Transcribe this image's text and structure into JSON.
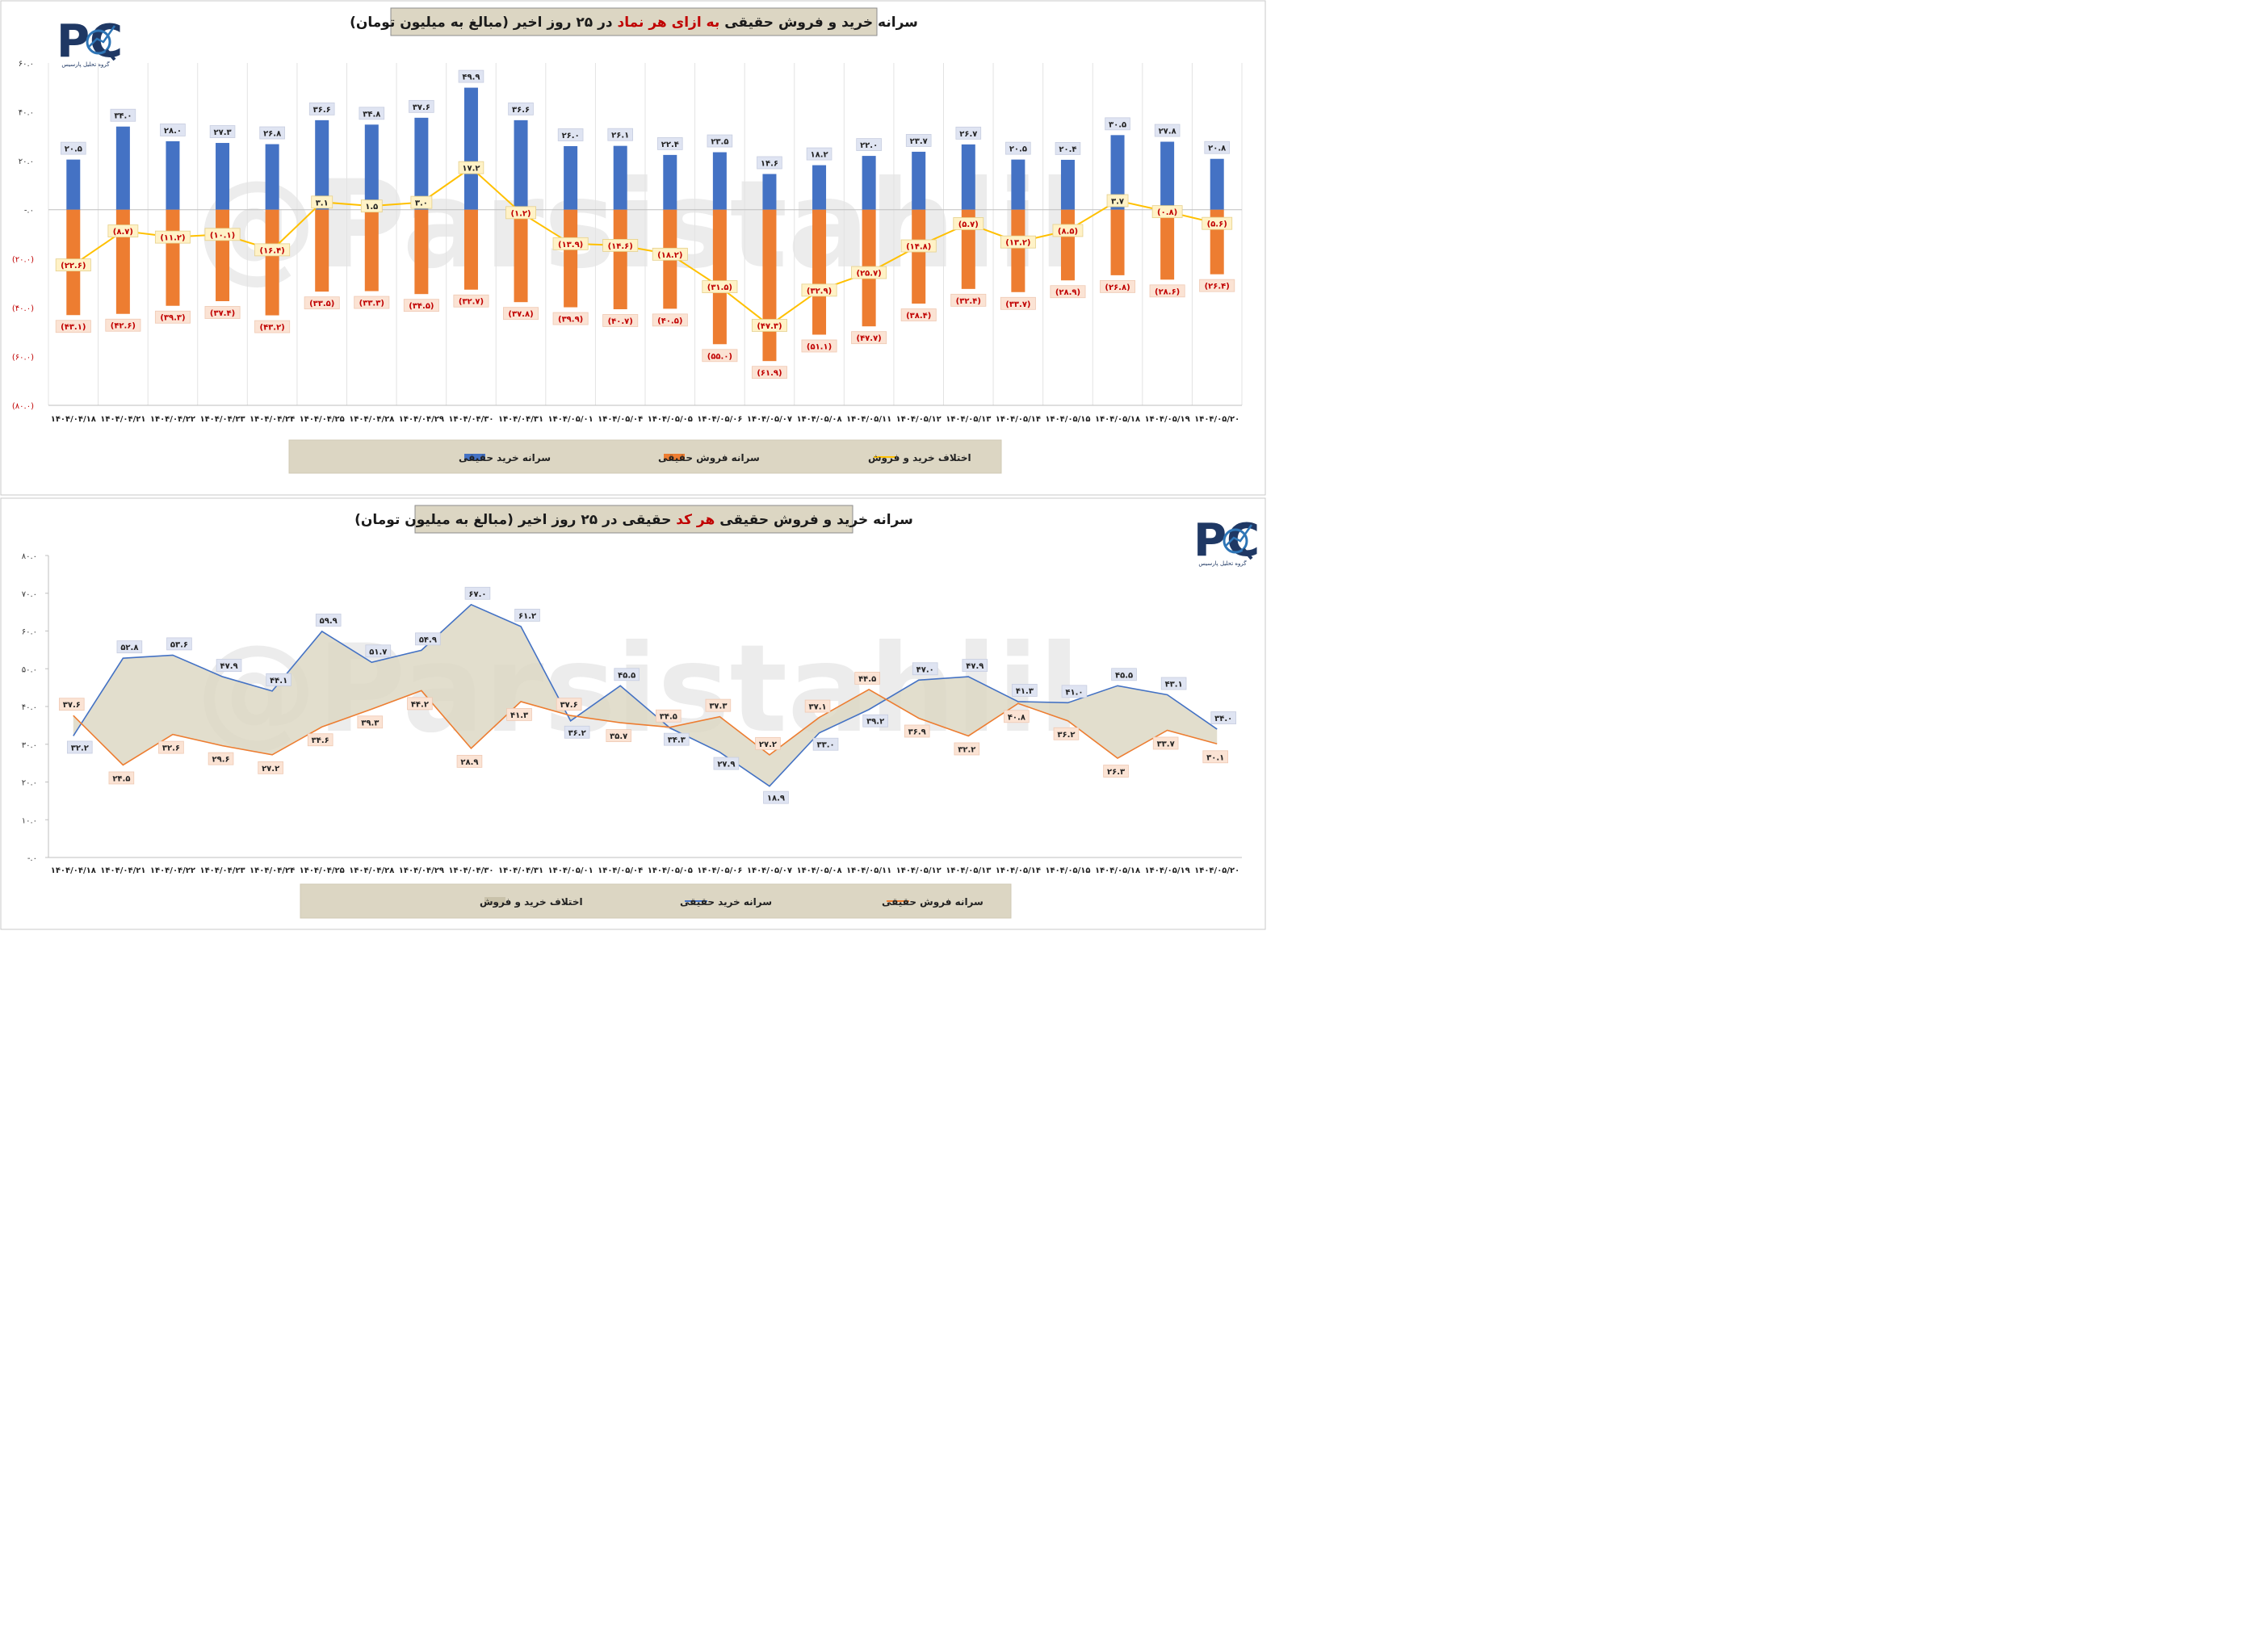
{
  "chart_data": [
    {
      "type": "bar",
      "title": {
        "part1": "سرانه خرید و فروش حقیقی",
        "highlight": "به ازای هر نماد",
        "part2": "در ۲۵ روز اخیر (مبالغ به میلیون تومان)"
      },
      "categories": [
        "۱۴۰۴/۰۴/۱۸",
        "۱۴۰۴/۰۴/۲۱",
        "۱۴۰۴/۰۴/۲۲",
        "۱۴۰۴/۰۴/۲۳",
        "۱۴۰۴/۰۴/۲۴",
        "۱۴۰۴/۰۴/۲۵",
        "۱۴۰۴/۰۴/۲۸",
        "۱۴۰۴/۰۴/۲۹",
        "۱۴۰۴/۰۴/۳۰",
        "۱۴۰۴/۰۴/۳۱",
        "۱۴۰۴/۰۵/۰۱",
        "۱۴۰۴/۰۵/۰۴",
        "۱۴۰۴/۰۵/۰۵",
        "۱۴۰۴/۰۵/۰۶",
        "۱۴۰۴/۰۵/۰۷",
        "۱۴۰۴/۰۵/۰۸",
        "۱۴۰۴/۰۵/۱۱",
        "۱۴۰۴/۰۵/۱۲",
        "۱۴۰۴/۰۵/۱۳",
        "۱۴۰۴/۰۵/۱۴",
        "۱۴۰۴/۰۵/۱۵",
        "۱۴۰۴/۰۵/۱۸",
        "۱۴۰۴/۰۵/۱۹",
        "۱۴۰۴/۰۵/۲۰"
      ],
      "ylim": [
        -80,
        60
      ],
      "yticks": [
        60,
        40,
        20,
        0,
        -20,
        -40,
        -60,
        -80
      ],
      "ytick_labels": [
        "۶۰.۰",
        "۴۰.۰",
        "۲۰.۰",
        "-.۰",
        "(۲۰.۰)",
        "(۴۰.۰)",
        "(۶۰.۰)",
        "(۸۰.۰)"
      ],
      "series": [
        {
          "name": "سرانه خرید حقیقی",
          "color": "#4472c4",
          "kind": "bar",
          "values": [
            20.5,
            34.0,
            28.0,
            27.3,
            26.8,
            36.6,
            34.8,
            37.6,
            49.9,
            36.6,
            26.0,
            26.1,
            22.4,
            23.5,
            14.6,
            18.2,
            22.0,
            23.7,
            26.7,
            20.5,
            20.4,
            30.5,
            27.8,
            20.8
          ],
          "labels": [
            "۲۰.۵",
            "۳۴.۰",
            "۲۸.۰",
            "۲۷.۳",
            "۲۶.۸",
            "۳۶.۶",
            "۳۴.۸",
            "۳۷.۶",
            "۴۹.۹",
            "۳۶.۶",
            "۲۶.۰",
            "۲۶.۱",
            "۲۲.۴",
            "۲۳.۵",
            "۱۴.۶",
            "۱۸.۲",
            "۲۲.۰",
            "۲۳.۷",
            "۲۶.۷",
            "۲۰.۵",
            "۲۰.۴",
            "۳۰.۵",
            "۲۷.۸",
            "۲۰.۸"
          ]
        },
        {
          "name": "سرانه فروش حقیقی",
          "color": "#ed7d31",
          "kind": "bar",
          "values": [
            -43.1,
            -42.6,
            -39.3,
            -37.4,
            -43.2,
            -33.5,
            -33.3,
            -34.5,
            -32.7,
            -37.8,
            -39.9,
            -40.7,
            -40.5,
            -55.0,
            -61.9,
            -51.1,
            -47.7,
            -38.4,
            -32.4,
            -33.7,
            -28.9,
            -26.8,
            -28.6,
            -26.4
          ],
          "labels": [
            "(۴۳.۱)",
            "(۴۲.۶)",
            "(۳۹.۳)",
            "(۳۷.۴)",
            "(۴۳.۲)",
            "(۳۳.۵)",
            "(۳۳.۳)",
            "(۳۴.۵)",
            "(۳۲.۷)",
            "(۳۷.۸)",
            "(۳۹.۹)",
            "(۴۰.۷)",
            "(۴۰.۵)",
            "(۵۵.۰)",
            "(۶۱.۹)",
            "(۵۱.۱)",
            "(۴۷.۷)",
            "(۳۸.۴)",
            "(۳۲.۴)",
            "(۳۳.۷)",
            "(۲۸.۹)",
            "(۲۶.۸)",
            "(۲۸.۶)",
            "(۲۶.۴)"
          ]
        },
        {
          "name": "اختلاف خرید و فروش",
          "color": "#ffc000",
          "kind": "line",
          "values": [
            -22.6,
            -8.7,
            -11.2,
            -10.1,
            -16.4,
            3.1,
            1.5,
            3.0,
            17.2,
            -1.2,
            -13.9,
            -14.6,
            -18.2,
            -31.5,
            -47.3,
            -32.9,
            -25.7,
            -14.8,
            -5.7,
            -13.2,
            -8.5,
            3.7,
            -0.8,
            -5.6
          ],
          "labels": [
            "(۲۲.۶)",
            "(۸.۷)",
            "(۱۱.۲)",
            "(۱۰.۱)",
            "(۱۶.۴)",
            "۳.۱",
            "۱.۵",
            "۳.۰",
            "۱۷.۲",
            "(۱.۲)",
            "(۱۳.۹)",
            "(۱۴.۶)",
            "(۱۸.۲)",
            "(۳۱.۵)",
            "(۴۷.۳)",
            "(۳۲.۹)",
            "(۲۵.۷)",
            "(۱۴.۸)",
            "(۵.۷)",
            "(۱۳.۲)",
            "(۸.۵)",
            "۳.۷",
            "(۰.۸)",
            "(۵.۶)"
          ]
        }
      ],
      "legend_position": "bottom",
      "grid": "vertical"
    },
    {
      "type": "area",
      "title": {
        "part1": "سرانه خرید و فروش حقیقی",
        "highlight": "هر کد",
        "part2": "حقیقی در ۲۵ روز اخیر (مبالغ به میلیون تومان)"
      },
      "categories": [
        "۱۴۰۴/۰۴/۱۸",
        "۱۴۰۴/۰۴/۲۱",
        "۱۴۰۴/۰۴/۲۲",
        "۱۴۰۴/۰۴/۲۳",
        "۱۴۰۴/۰۴/۲۴",
        "۱۴۰۴/۰۴/۲۵",
        "۱۴۰۴/۰۴/۲۸",
        "۱۴۰۴/۰۴/۲۹",
        "۱۴۰۴/۰۴/۳۰",
        "۱۴۰۴/۰۴/۳۱",
        "۱۴۰۴/۰۵/۰۱",
        "۱۴۰۴/۰۵/۰۴",
        "۱۴۰۴/۰۵/۰۵",
        "۱۴۰۴/۰۵/۰۶",
        "۱۴۰۴/۰۵/۰۷",
        "۱۴۰۴/۰۵/۰۸",
        "۱۴۰۴/۰۵/۱۱",
        "۱۴۰۴/۰۵/۱۲",
        "۱۴۰۴/۰۵/۱۳",
        "۱۴۰۴/۰۵/۱۴",
        "۱۴۰۴/۰۵/۱۵",
        "۱۴۰۴/۰۵/۱۸",
        "۱۴۰۴/۰۵/۱۹",
        "۱۴۰۴/۰۵/۲۰"
      ],
      "ylim": [
        0,
        80
      ],
      "yticks": [
        80,
        70,
        60,
        50,
        40,
        30,
        20,
        10,
        0
      ],
      "ytick_labels": [
        "۸۰.۰",
        "۷۰.۰",
        "۶۰.۰",
        "۵۰.۰",
        "۴۰.۰",
        "۳۰.۰",
        "۲۰.۰",
        "۱۰.۰",
        "-.۰"
      ],
      "series": [
        {
          "name": "سرانه خرید حقیقی",
          "color": "#4472c4",
          "kind": "line",
          "values": [
            32.2,
            52.8,
            53.6,
            47.9,
            44.1,
            59.9,
            51.7,
            54.9,
            67.0,
            61.2,
            36.2,
            45.5,
            34.3,
            27.9,
            18.9,
            33.0,
            39.2,
            47.0,
            47.9,
            41.3,
            41.0,
            45.5,
            43.1,
            34.0
          ],
          "labels": [
            "۳۲.۲",
            "۵۲.۸",
            "۵۳.۶",
            "۴۷.۹",
            "۴۴.۱",
            "۵۹.۹",
            "۵۱.۷",
            "۵۴.۹",
            "۶۷.۰",
            "۶۱.۲",
            "۳۶.۲",
            "۴۵.۵",
            "۳۴.۳",
            "۲۷.۹",
            "۱۸.۹",
            "۳۳.۰",
            "۳۹.۲",
            "۴۷.۰",
            "۴۷.۹",
            "۴۱.۳",
            "۴۱.۰",
            "۴۵.۵",
            "۴۳.۱",
            "۳۴.۰"
          ]
        },
        {
          "name": "سرانه فروش حقیقی",
          "color": "#ed7d31",
          "kind": "line",
          "values": [
            37.6,
            24.5,
            32.6,
            29.6,
            27.2,
            34.6,
            39.3,
            44.2,
            28.9,
            41.3,
            37.6,
            35.7,
            34.5,
            37.3,
            27.2,
            37.1,
            44.5,
            36.9,
            32.2,
            40.8,
            36.2,
            26.3,
            33.7,
            30.1
          ],
          "labels": [
            "۳۷.۶",
            "۲۴.۵",
            "۳۲.۶",
            "۲۹.۶",
            "۲۷.۲",
            "۳۴.۶",
            "۳۹.۳",
            "۴۴.۲",
            "۲۸.۹",
            "۴۱.۳",
            "۳۷.۶",
            "۳۵.۷",
            "۳۴.۵",
            "۳۷.۳",
            "۲۷.۲",
            "۳۷.۱",
            "۴۴.۵",
            "۳۶.۹",
            "۳۲.۲",
            "۴۰.۸",
            "۳۶.۲",
            "۲۶.۳",
            "۳۳.۷",
            "۳۰.۱"
          ]
        },
        {
          "name": "اختلاف خرید و فروش",
          "color": "#ddd8c4",
          "kind": "area-between"
        }
      ],
      "legend_position": "bottom",
      "grid": "none"
    }
  ],
  "watermark": "@Parsistahlil",
  "logo": {
    "letters": "PC",
    "subtitle": "گروه تحلیل پارسیس"
  },
  "colors": {
    "buy": "#4472c4",
    "sell": "#ed7d31",
    "diff": "#ffc000",
    "area": "#ddd8c4",
    "title_bg": "#dcd6c3",
    "highlight": "#c00000"
  }
}
